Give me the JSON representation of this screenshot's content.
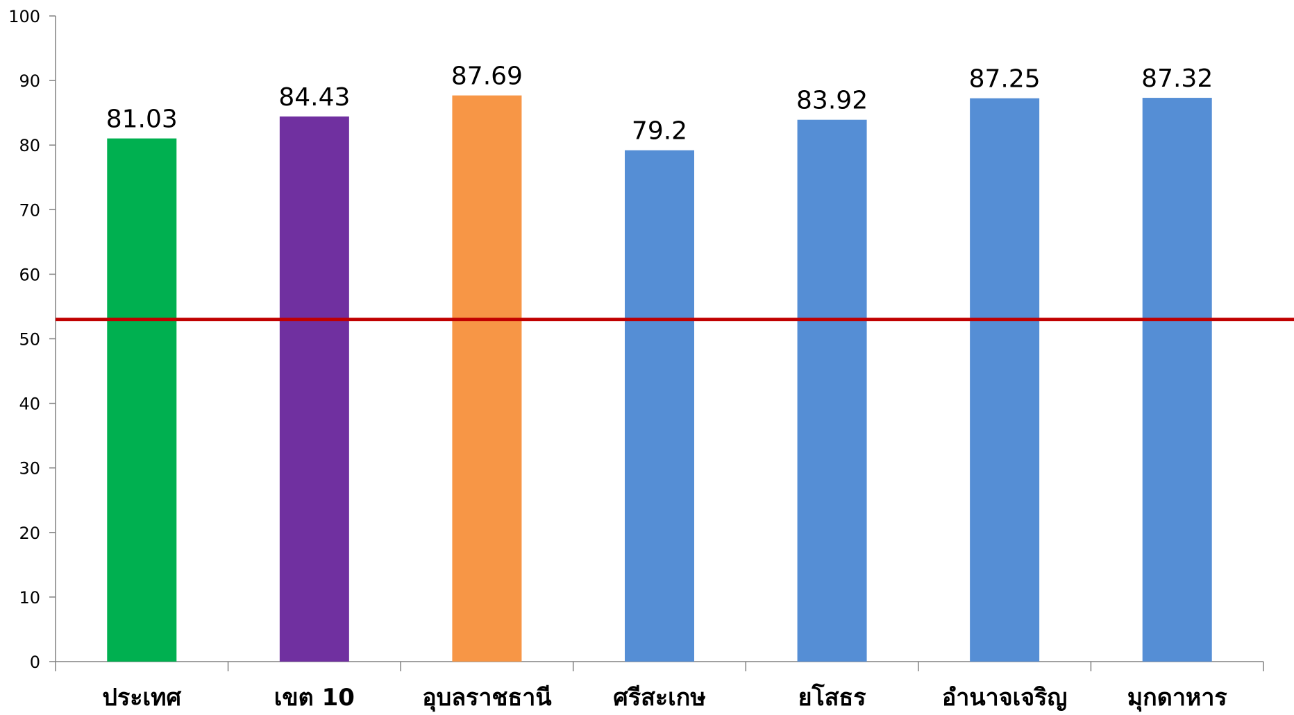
{
  "chart_data": {
    "type": "bar",
    "categories": [
      "ประเทศ",
      "เขต 10",
      "อุบลราชธานี",
      "ศรีสะเกษ",
      "ยโสธร",
      "อำนาจเจริญ",
      "มุกดาหาร"
    ],
    "values": [
      81.03,
      84.43,
      87.69,
      79.2,
      83.92,
      87.25,
      87.32
    ],
    "data_labels": [
      "81.03",
      "84.43",
      "87.69",
      "79.2",
      "83.92",
      "87.25",
      "87.32"
    ],
    "bar_colors": [
      "#00b050",
      "#7030a0",
      "#f79646",
      "#558ed5",
      "#558ed5",
      "#558ed5",
      "#558ed5"
    ],
    "y_ticks": [
      "0",
      "10",
      "20",
      "30",
      "40",
      "50",
      "60",
      "70",
      "80",
      "90",
      "100"
    ],
    "ylim": [
      0,
      100
    ],
    "reference_line": {
      "value": 53,
      "color": "#c00000"
    },
    "grid": false,
    "legend": "none",
    "axis_color": "#808080"
  }
}
